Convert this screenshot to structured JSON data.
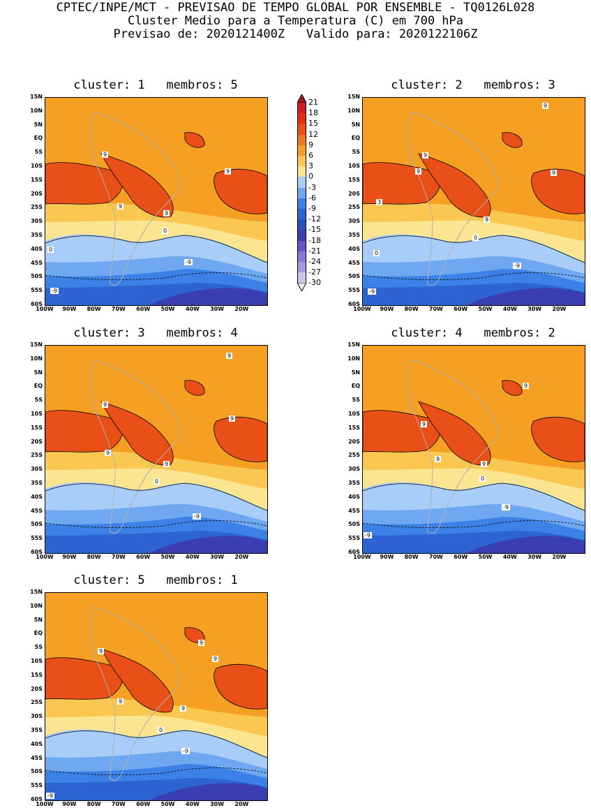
{
  "header": {
    "line1": "CPTEC/INPE/MCT - PREVISAO DE TEMPO GLOBAL POR ENSEMBLE - TQ0126L028",
    "line2": "Cluster Medio para a Temperatura (C) em 700 hPa",
    "line3": "Previsao de: 2020121400Z   Valido para: 2020122106Z"
  },
  "axes": {
    "lat_labels": [
      "15N",
      "10N",
      "5N",
      "EQ",
      "5S",
      "10S",
      "15S",
      "20S",
      "25S",
      "30S",
      "35S",
      "40S",
      "45S",
      "50S",
      "55S",
      "60S"
    ],
    "lon_labels": [
      "100W",
      "90W",
      "80W",
      "70W",
      "60W",
      "50W",
      "40W",
      "30W",
      "20W"
    ]
  },
  "colorbar": {
    "labels": [
      "21",
      "18",
      "15",
      "12",
      "9",
      "6",
      "3",
      "0",
      "-3",
      "-6",
      "-9",
      "-12",
      "-15",
      "-18",
      "-21",
      "-24",
      "-27",
      "-30"
    ],
    "colors": [
      "#a01818",
      "#c82020",
      "#e03010",
      "#e85018",
      "#f07820",
      "#f5a023",
      "#fac850",
      "#fbe591",
      "#a8cdf8",
      "#6fa8f0",
      "#3c82e6",
      "#2d64d2",
      "#2a50c0",
      "#3a3eb0",
      "#6a52c8",
      "#8a78d8",
      "#a89ae0",
      "#cdc4ec",
      "#f0eef8"
    ]
  },
  "panels": [
    {
      "title": "cluster: 1   membros: 5",
      "labels": [
        "9",
        "9",
        "9",
        "9",
        "0",
        "0",
        "-9",
        "-9"
      ]
    },
    {
      "title": "cluster: 2   membros: 3",
      "labels": [
        "9",
        "9",
        "9",
        "9",
        "3",
        "9",
        "0",
        "0",
        "-9",
        "-9"
      ]
    },
    {
      "title": "cluster: 3   membros: 4",
      "labels": [
        "9",
        "9",
        "9",
        "9",
        "9",
        "0",
        "-9"
      ]
    },
    {
      "title": "cluster: 4   membros: 2",
      "labels": [
        "9",
        "9",
        "9",
        "9",
        "0",
        "-9",
        "-9"
      ]
    },
    {
      "title": "cluster: 5   membros: 1",
      "labels": [
        "9",
        "9",
        "9",
        "9",
        "9",
        "0",
        "-9",
        "-9"
      ]
    }
  ]
}
